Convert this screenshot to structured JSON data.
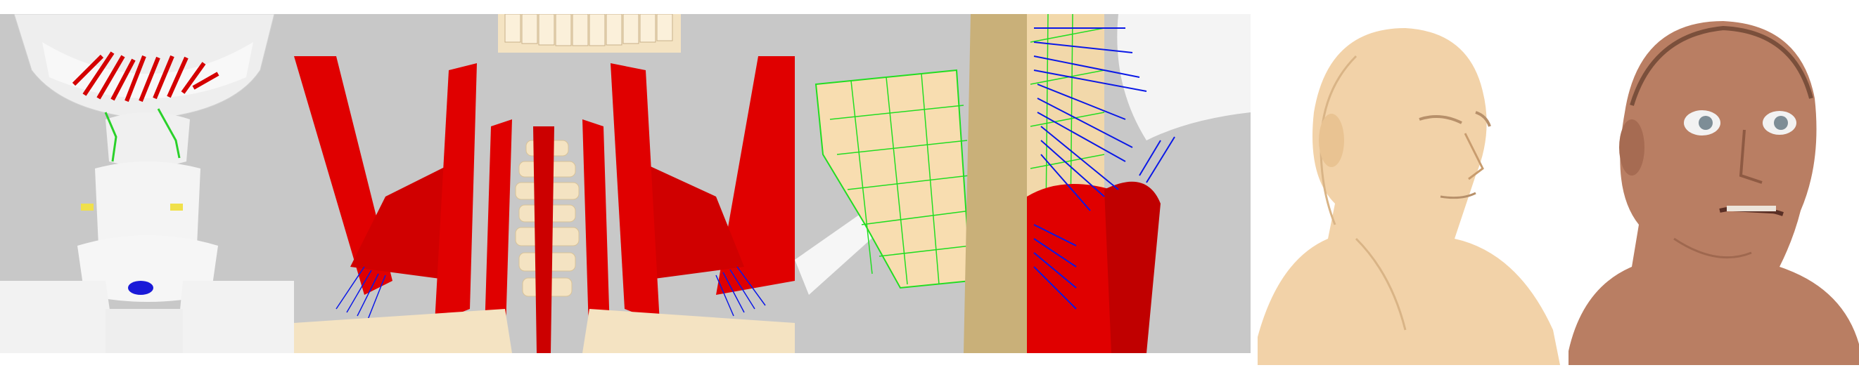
{
  "figure": {
    "panels": [
      {
        "id": "panel-1",
        "subject": "hyoid-suprahyoid-muscles-posterior-view",
        "background": "#c8c8c8"
      },
      {
        "id": "panel-2",
        "subject": "neck-muscles-anterior-view",
        "background": "#c8c8c8"
      },
      {
        "id": "panel-3",
        "subject": "muscle-mesh-closeup",
        "background": "#c8c8c8"
      },
      {
        "id": "panel-4",
        "subject": "head-neck-base-mesh",
        "background": "#ffffff"
      },
      {
        "id": "panel-5",
        "subject": "head-neck-textured",
        "background": "#ffffff"
      }
    ]
  },
  "colors": {
    "muscle_red": "#e00000",
    "bone": "#f4e3c2",
    "bone_gray": "#ececec",
    "fiber_blue": "#0a18e6",
    "mesh_green": "#22dd22",
    "skin_base": "#f2d2a8",
    "skin_textured": "#b97e63"
  }
}
